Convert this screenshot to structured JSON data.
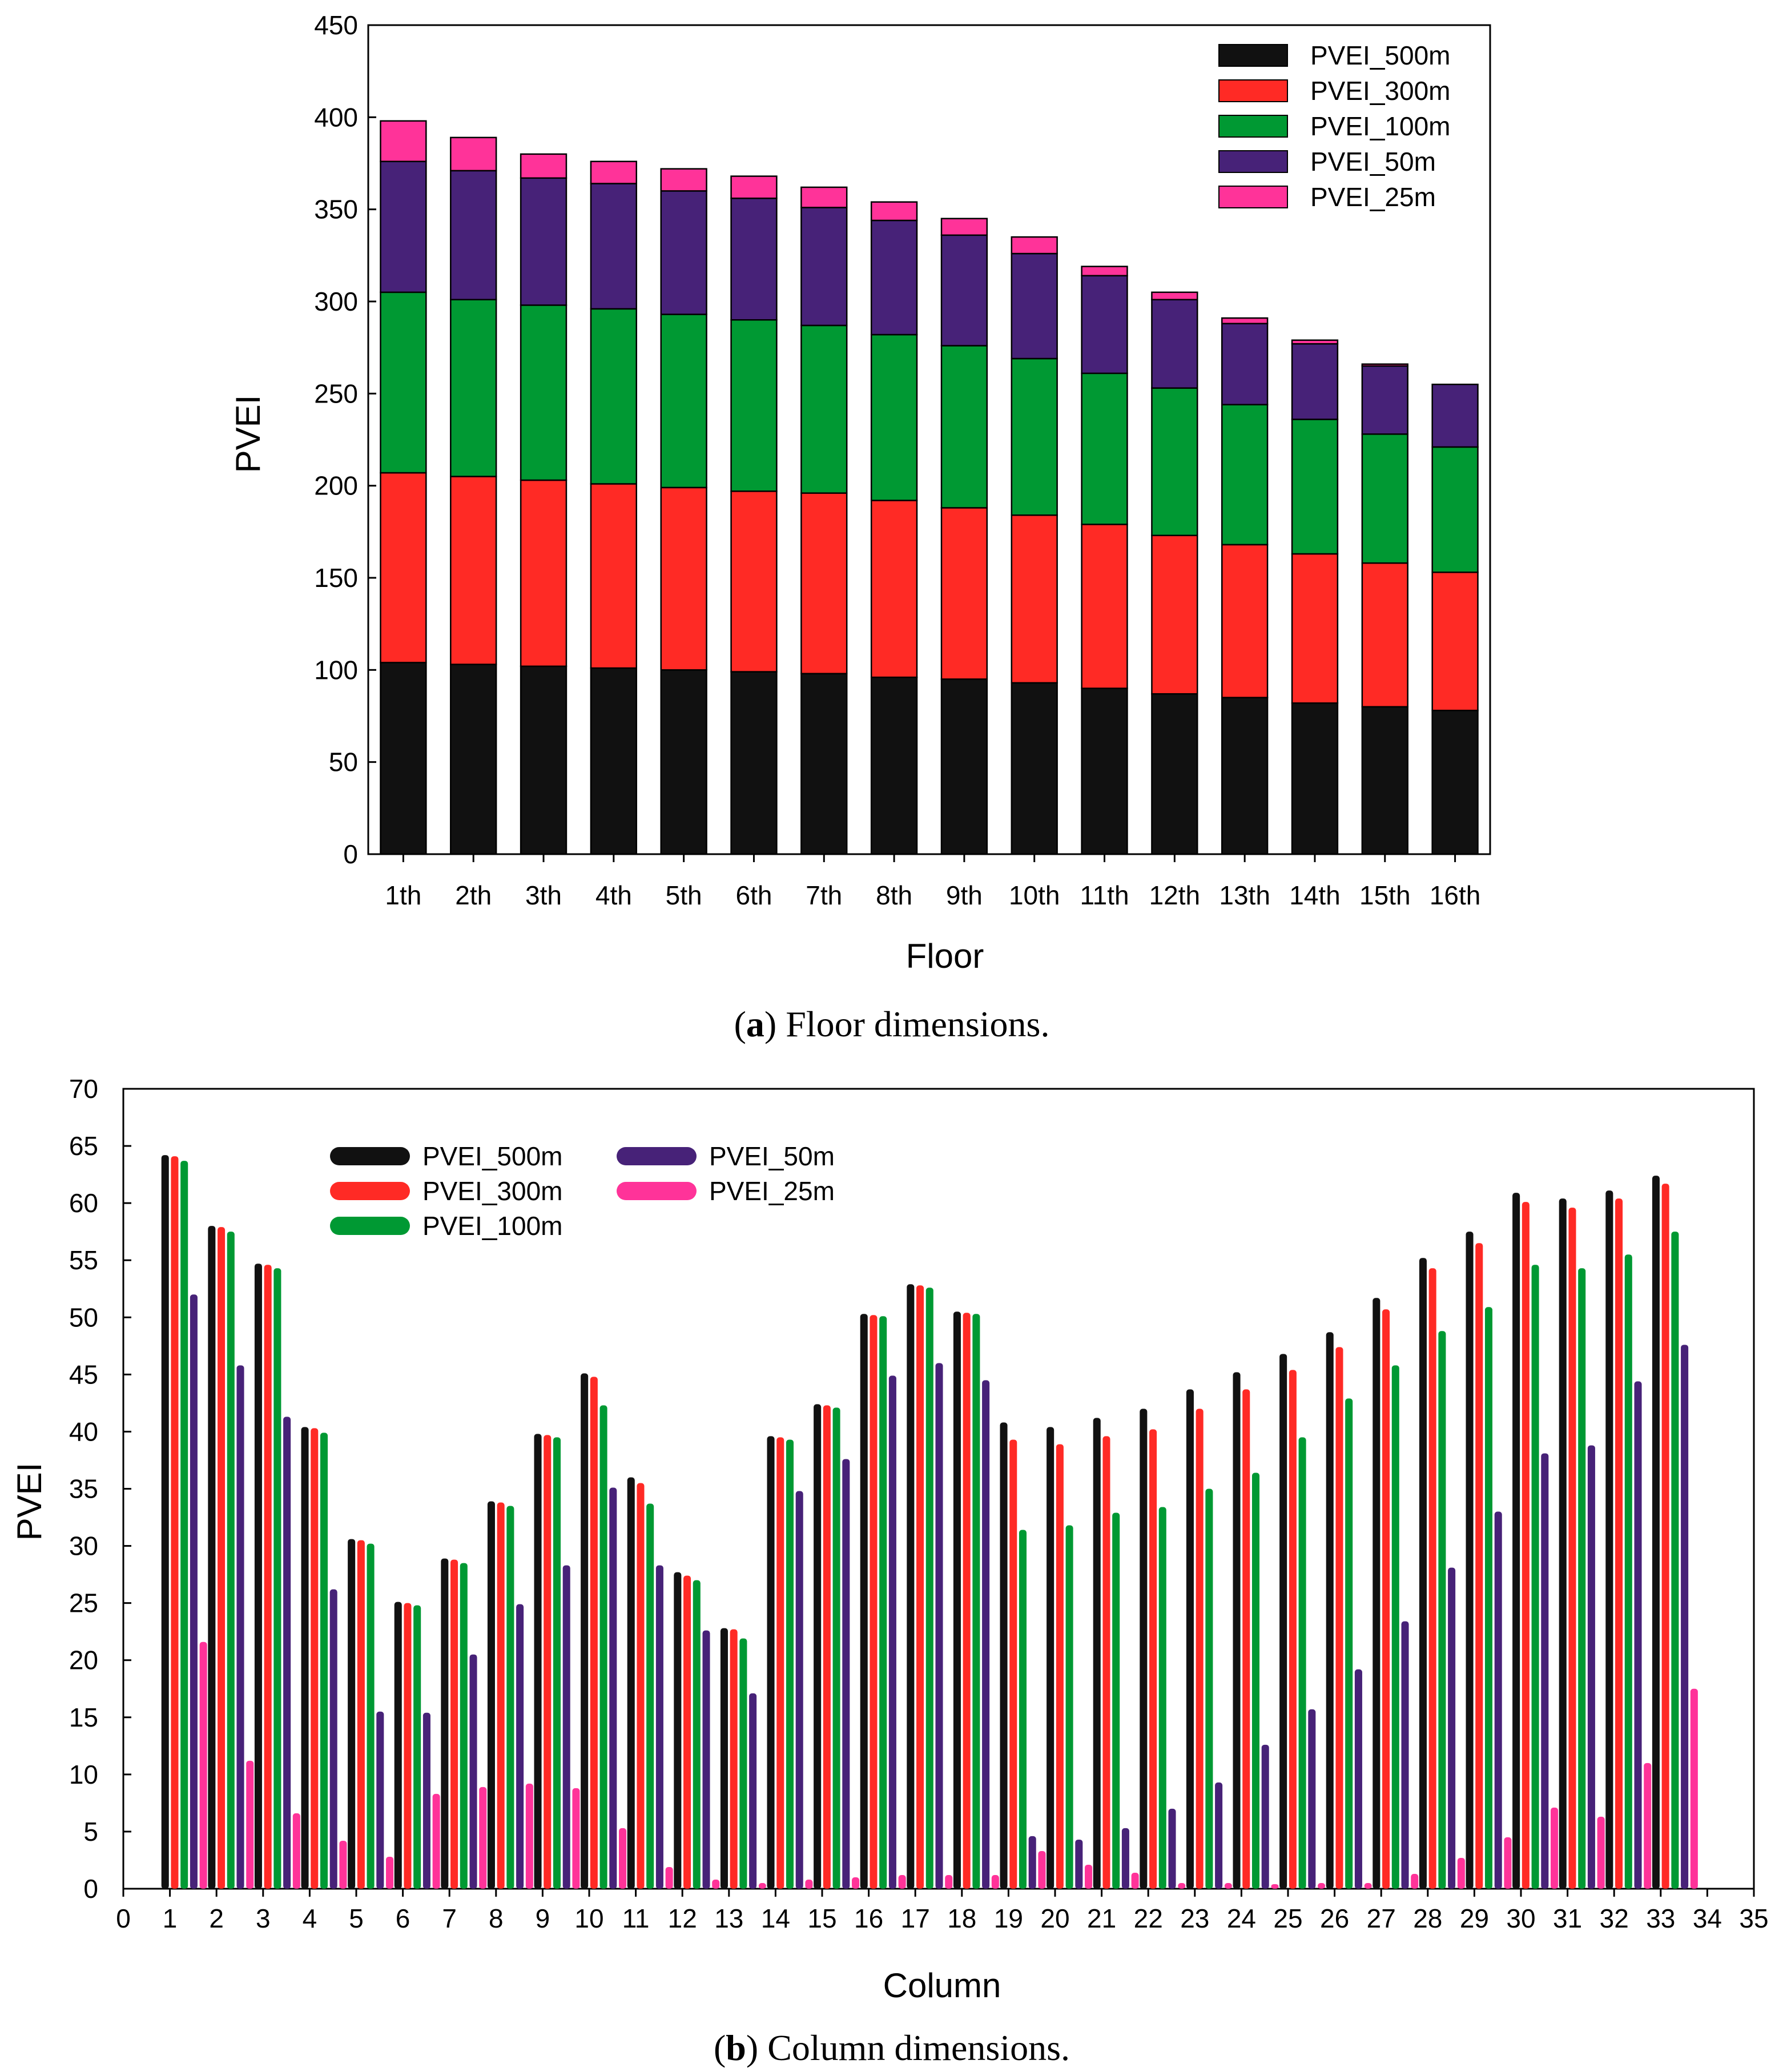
{
  "chart_data": [
    {
      "type": "bar",
      "stacked": true,
      "caption_label": "a",
      "caption_text": "Floor dimensions.",
      "xlabel": "Floor",
      "ylabel": "PVEI",
      "ylim": [
        0,
        450
      ],
      "yticks": [
        0,
        50,
        100,
        150,
        200,
        250,
        300,
        350,
        400,
        450
      ],
      "legend_position": "top-right",
      "categories": [
        "1th",
        "2th",
        "3th",
        "4th",
        "5th",
        "6th",
        "7th",
        "8th",
        "9th",
        "10th",
        "11th",
        "12th",
        "13th",
        "14th",
        "15th",
        "16th"
      ],
      "series": [
        {
          "name": "PVEI_500m",
          "color": "#111111",
          "values": [
            104,
            103,
            102,
            101,
            100,
            99,
            98,
            96,
            95,
            93,
            90,
            87,
            85,
            82,
            80,
            78
          ]
        },
        {
          "name": "PVEI_300m",
          "color": "#ff2a25",
          "values": [
            103,
            102,
            101,
            100,
            99,
            98,
            98,
            96,
            93,
            91,
            89,
            86,
            83,
            81,
            78,
            75
          ]
        },
        {
          "name": "PVEI_100m",
          "color": "#009933",
          "values": [
            98,
            96,
            95,
            95,
            94,
            93,
            91,
            90,
            88,
            85,
            82,
            80,
            76,
            73,
            70,
            68
          ]
        },
        {
          "name": "PVEI_50m",
          "color": "#472278",
          "values": [
            71,
            70,
            69,
            68,
            67,
            66,
            64,
            62,
            60,
            57,
            53,
            48,
            44,
            41,
            37,
            34
          ]
        },
        {
          "name": "PVEI_25m",
          "color": "#ff3399",
          "values": [
            22,
            18,
            13,
            12,
            12,
            12,
            11,
            10,
            9,
            9,
            5,
            4,
            3,
            2,
            1,
            0
          ]
        }
      ]
    },
    {
      "type": "bar",
      "stacked": false,
      "caption_label": "b",
      "caption_text": "Column dimensions.",
      "xlabel": "Column",
      "ylabel": "PVEI",
      "ylim": [
        0,
        70
      ],
      "xlim": [
        0,
        35
      ],
      "yticks": [
        0,
        5,
        10,
        15,
        20,
        25,
        30,
        35,
        40,
        45,
        50,
        55,
        60,
        65,
        70
      ],
      "xticks": [
        0,
        1,
        2,
        3,
        4,
        5,
        6,
        7,
        8,
        9,
        10,
        11,
        12,
        13,
        14,
        15,
        16,
        17,
        18,
        19,
        20,
        21,
        22,
        23,
        24,
        25,
        26,
        27,
        28,
        29,
        30,
        31,
        32,
        33,
        34,
        35
      ],
      "legend_position": "top-left",
      "categories": [
        1,
        2,
        3,
        4,
        5,
        6,
        7,
        8,
        9,
        10,
        11,
        12,
        13,
        14,
        15,
        16,
        17,
        18,
        19,
        20,
        21,
        22,
        23,
        24,
        25,
        26,
        27,
        28,
        29,
        30,
        31,
        32,
        33
      ],
      "series": [
        {
          "name": "PVEI_500m",
          "color": "#111111",
          "values": [
            64.2,
            58.0,
            54.7,
            40.4,
            30.6,
            25.1,
            28.9,
            33.9,
            39.8,
            45.1,
            36.0,
            27.7,
            22.8,
            39.6,
            42.4,
            50.3,
            52.9,
            50.5,
            40.8,
            40.4,
            41.2,
            42.0,
            43.7,
            45.2,
            46.8,
            48.7,
            51.7,
            55.2,
            57.5,
            60.9,
            60.4,
            61.1,
            62.4
          ]
        },
        {
          "name": "PVEI_300m",
          "color": "#ff2a25",
          "values": [
            64.1,
            57.9,
            54.6,
            40.3,
            30.5,
            25.0,
            28.8,
            33.8,
            39.7,
            44.8,
            35.5,
            27.4,
            22.7,
            39.5,
            42.3,
            50.2,
            52.8,
            50.4,
            39.3,
            38.9,
            39.6,
            40.2,
            42.0,
            43.7,
            45.4,
            47.4,
            50.7,
            54.3,
            56.5,
            60.1,
            59.6,
            60.4,
            61.7
          ]
        },
        {
          "name": "PVEI_100m",
          "color": "#009933",
          "values": [
            63.7,
            57.5,
            54.3,
            39.9,
            30.2,
            24.8,
            28.5,
            33.5,
            39.5,
            42.3,
            33.7,
            27.0,
            21.9,
            39.3,
            42.1,
            50.1,
            52.6,
            50.3,
            31.4,
            31.8,
            32.9,
            33.4,
            35.0,
            36.4,
            39.5,
            42.9,
            45.8,
            48.8,
            50.9,
            54.6,
            54.3,
            55.5,
            57.5
          ]
        },
        {
          "name": "PVEI_50m",
          "color": "#472278",
          "values": [
            52.0,
            45.8,
            41.3,
            26.2,
            15.5,
            15.4,
            20.5,
            24.9,
            28.3,
            35.1,
            28.3,
            22.6,
            17.1,
            34.8,
            37.6,
            44.9,
            46.0,
            44.5,
            4.6,
            4.3,
            5.3,
            7.0,
            9.3,
            12.6,
            15.7,
            19.2,
            23.4,
            28.1,
            33.0,
            38.1,
            38.8,
            44.4,
            47.6
          ]
        },
        {
          "name": "PVEI_25m",
          "color": "#ff3399",
          "values": [
            21.6,
            11.2,
            6.6,
            4.2,
            2.8,
            8.3,
            8.9,
            9.2,
            8.8,
            5.3,
            1.9,
            0.8,
            0.5,
            0.8,
            1.0,
            1.2,
            1.2,
            1.2,
            3.3,
            2.1,
            1.4,
            0.5,
            0.5,
            0.4,
            0.5,
            0.5,
            1.3,
            2.7,
            4.5,
            7.1,
            6.3,
            11.0,
            17.5
          ]
        }
      ]
    }
  ]
}
